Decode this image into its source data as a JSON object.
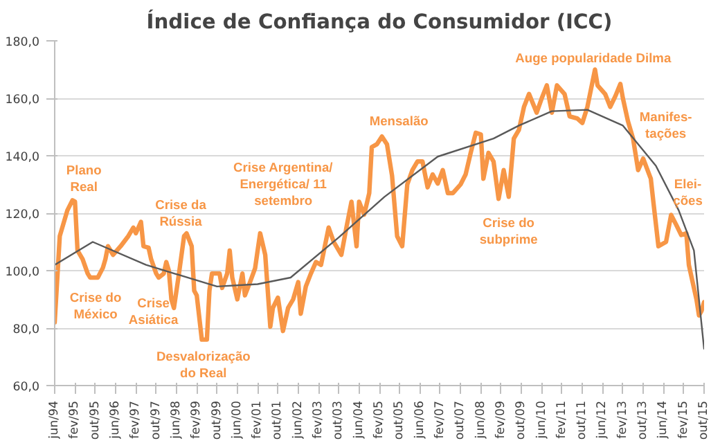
{
  "chart_data": {
    "type": "line",
    "title": "Índice de Confiança do Consumidor (ICC)",
    "x": [
      "1994-06",
      "1994-08",
      "1994-11",
      "1995-01",
      "1995-02",
      "1995-03",
      "1995-05",
      "1995-07",
      "1995-08",
      "1995-11",
      "1996-01",
      "1996-02",
      "1996-03",
      "1996-05",
      "1996-08",
      "1996-11",
      "1997-01",
      "1997-02",
      "1997-04",
      "1997-05",
      "1997-07",
      "1997-08",
      "1997-10",
      "1997-11",
      "1998-01",
      "1998-02",
      "1998-03",
      "1998-04",
      "1998-05",
      "1998-07",
      "1998-09",
      "1998-10",
      "1998-12",
      "1999-01",
      "1999-02",
      "1999-04",
      "1999-06",
      "1999-07",
      "1999-08",
      "1999-11",
      "1999-12",
      "2000-02",
      "2000-03",
      "2000-04",
      "2000-06",
      "2000-08",
      "2000-09",
      "2000-11",
      "2001-01",
      "2001-02",
      "2001-03",
      "2001-05",
      "2001-07",
      "2001-08",
      "2001-10",
      "2001-12",
      "2002-02",
      "2002-04",
      "2002-06",
      "2002-07",
      "2002-09",
      "2002-11",
      "2003-01",
      "2003-03",
      "2003-06",
      "2003-08",
      "2003-11",
      "2004-01",
      "2004-03",
      "2004-05",
      "2004-06",
      "2004-08",
      "2004-10",
      "2004-11",
      "2005-01",
      "2005-03",
      "2005-05",
      "2005-07",
      "2005-09",
      "2005-11",
      "2006-01",
      "2006-03",
      "2006-05",
      "2006-07",
      "2006-09",
      "2006-11",
      "2007-01",
      "2007-03",
      "2007-05",
      "2007-07",
      "2007-10",
      "2007-12",
      "2008-02",
      "2008-04",
      "2008-06",
      "2008-07",
      "2008-09",
      "2008-11",
      "2009-01",
      "2009-03",
      "2009-05",
      "2009-07",
      "2009-09",
      "2009-11",
      "2010-01",
      "2010-04",
      "2010-06",
      "2010-08",
      "2010-10",
      "2010-12",
      "2011-03",
      "2011-05",
      "2011-08",
      "2011-10",
      "2011-12",
      "2012-03",
      "2012-04",
      "2012-07",
      "2012-09",
      "2012-11",
      "2013-01",
      "2013-02",
      "2013-04",
      "2013-06",
      "2013-08",
      "2013-10",
      "2014-01",
      "2014-02",
      "2014-04",
      "2014-07",
      "2014-09",
      "2014-11",
      "2015-01",
      "2015-03",
      "2015-04",
      "2015-07",
      "2015-08",
      "2015-09",
      "2015-10"
    ],
    "series": [
      {
        "color": "#f79646",
        "values": [
          82,
          112,
          121,
          124.5,
          124,
          107,
          104,
          99,
          97.6,
          97.6,
          101,
          104,
          108.5,
          105.5,
          108.5,
          112,
          115,
          113,
          117,
          108.5,
          108,
          104,
          99,
          97.6,
          99,
          103,
          100,
          90,
          87,
          99,
          112,
          113,
          108.5,
          93,
          91.4,
          76,
          76,
          93,
          99,
          99,
          94,
          99,
          107,
          97.6,
          90,
          99,
          91.4,
          96,
          100.8,
          107,
          113,
          105.5,
          80.5,
          87,
          90.6,
          79,
          87,
          90,
          96,
          85,
          94.5,
          99,
          103,
          102,
          115,
          110,
          105.5,
          115,
          124,
          108.5,
          124,
          119.5,
          127,
          143,
          144,
          146.7,
          144,
          133,
          112,
          108.5,
          130,
          135,
          138,
          138,
          129,
          133.5,
          130.3,
          135,
          127,
          127,
          130,
          133.5,
          141,
          148,
          147.4,
          132,
          141,
          138,
          125,
          135,
          125.7,
          146,
          149,
          157,
          161.5,
          155,
          160,
          164.5,
          155,
          164.5,
          161.5,
          153.7,
          153,
          151.4,
          157,
          170,
          164.5,
          161.5,
          157,
          160.7,
          165,
          160,
          152,
          146,
          135,
          139,
          132,
          124,
          108.5,
          110,
          119.4,
          116,
          112.4,
          113,
          102,
          90,
          84.4,
          86,
          89
        ]
      },
      {
        "color": "#595959",
        "x": [
          "1994-06",
          "1995-09",
          "1997-06",
          "1999-10",
          "2001-02",
          "2002-03",
          "2003-10",
          "2005-04",
          "2007-01",
          "2008-11",
          "2009-09",
          "2010-10",
          "2011-12",
          "2013-02",
          "2014-03",
          "2014-12",
          "2015-06",
          "2015-10"
        ],
        "values": [
          102,
          110,
          102,
          94.5,
          95.3,
          97.6,
          111.6,
          125.7,
          139.7,
          146,
          150.5,
          155.5,
          156,
          150.5,
          136.5,
          121,
          107,
          72.8
        ]
      }
    ],
    "xlim": [
      "1994-06",
      "2015-10"
    ],
    "xticks": [
      {
        "value": "1994-06",
        "label": "jun/94"
      },
      {
        "value": "1995-02",
        "label": "fev/95"
      },
      {
        "value": "1995-10",
        "label": "out/95"
      },
      {
        "value": "1996-06",
        "label": "jun/96"
      },
      {
        "value": "1997-02",
        "label": "fev/97"
      },
      {
        "value": "1997-10",
        "label": "out/97"
      },
      {
        "value": "1998-06",
        "label": "jun/98"
      },
      {
        "value": "1999-02",
        "label": "fev/99"
      },
      {
        "value": "1999-10",
        "label": "out/99"
      },
      {
        "value": "2000-06",
        "label": "jun/00"
      },
      {
        "value": "2001-02",
        "label": "fev/01"
      },
      {
        "value": "2001-10",
        "label": "out/01"
      },
      {
        "value": "2002-06",
        "label": "jun/02"
      },
      {
        "value": "2003-02",
        "label": "fev/03"
      },
      {
        "value": "2003-10",
        "label": "out/03"
      },
      {
        "value": "2004-06",
        "label": "jun/04"
      },
      {
        "value": "2005-02",
        "label": "fev/05"
      },
      {
        "value": "2005-10",
        "label": "out/05"
      },
      {
        "value": "2006-06",
        "label": "jun/06"
      },
      {
        "value": "2007-02",
        "label": "fev/07"
      },
      {
        "value": "2007-10",
        "label": "out/07"
      },
      {
        "value": "2008-06",
        "label": "jun/08"
      },
      {
        "value": "2009-02",
        "label": "fev/09"
      },
      {
        "value": "2009-10",
        "label": "out/09"
      },
      {
        "value": "2010-06",
        "label": "jun/10"
      },
      {
        "value": "2011-02",
        "label": "fev/11"
      },
      {
        "value": "2011-10",
        "label": "out/11"
      },
      {
        "value": "2012-06",
        "label": "jun/12"
      },
      {
        "value": "2013-02",
        "label": "fev/13"
      },
      {
        "value": "2013-10",
        "label": "out/13"
      },
      {
        "value": "2014-06",
        "label": "jun/14"
      },
      {
        "value": "2015-02",
        "label": "fev/15"
      },
      {
        "value": "2015-10",
        "label": "out/15"
      }
    ],
    "ylim": [
      60,
      180
    ],
    "yticks": [
      {
        "value": 60,
        "label": "60,0"
      },
      {
        "value": 80,
        "label": "80,0"
      },
      {
        "value": 100,
        "label": "100,0"
      },
      {
        "value": 120,
        "label": "120,0"
      },
      {
        "value": 140,
        "label": "140,0"
      },
      {
        "value": 160,
        "label": "160,0"
      },
      {
        "value": 180,
        "label": "180,0"
      }
    ],
    "grid": "y",
    "annotations": [
      "Plano\nReal",
      "Crise do\nMéxico",
      "Crise da\nRússia",
      "Crise\nAsiática",
      "Desvalorização\ndo Real",
      "Crise Argentina/\nEnergética/ 11\nsetembro",
      "Mensalão",
      "Crise do\nsubprime",
      "Auge popularidade  Dilma",
      "Manifes-\ntações",
      "Elei-\nções"
    ]
  }
}
